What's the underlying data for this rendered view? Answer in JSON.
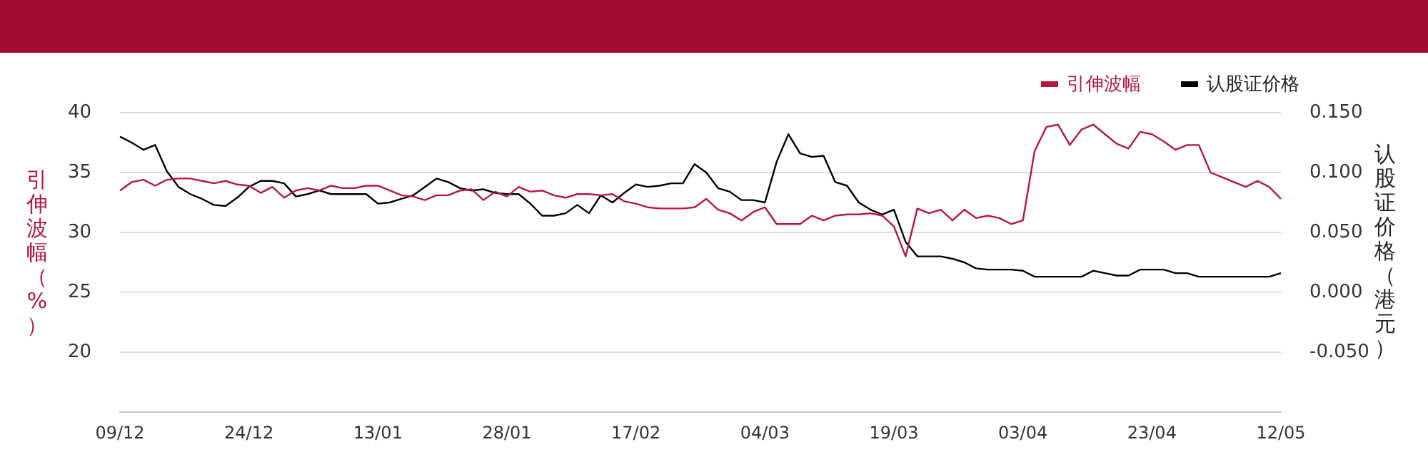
{
  "chart_data": {
    "type": "line",
    "categories": [
      "09/12",
      null,
      null,
      null,
      null,
      null,
      null,
      null,
      null,
      null,
      null,
      "24/12",
      null,
      null,
      null,
      null,
      null,
      null,
      null,
      null,
      null,
      null,
      "13/01",
      null,
      null,
      null,
      null,
      null,
      null,
      null,
      null,
      null,
      null,
      "28/01",
      null,
      null,
      null,
      null,
      null,
      null,
      null,
      null,
      null,
      null,
      "17/02",
      null,
      null,
      null,
      null,
      null,
      null,
      null,
      null,
      null,
      null,
      "04/03",
      null,
      null,
      null,
      null,
      null,
      null,
      null,
      null,
      null,
      null,
      "19/03",
      null,
      null,
      null,
      null,
      null,
      null,
      null,
      null,
      null,
      null,
      "03/04",
      null,
      null,
      null,
      null,
      null,
      null,
      null,
      null,
      null,
      null,
      "23/04",
      null,
      null,
      null,
      null,
      null,
      null,
      null,
      null,
      null,
      null,
      "12/05"
    ],
    "series": [
      {
        "name": "引伸波幅",
        "color": "#b5173f",
        "axis": "y",
        "values": [
          33.5,
          34.2,
          34.4,
          33.9,
          34.4,
          34.5,
          34.5,
          34.3,
          34.1,
          34.3,
          34.0,
          33.9,
          33.3,
          33.8,
          32.9,
          33.5,
          33.7,
          33.5,
          33.9,
          33.7,
          33.7,
          33.9,
          33.9,
          33.5,
          33.1,
          33.0,
          32.7,
          33.1,
          33.1,
          33.5,
          33.6,
          32.7,
          33.4,
          33.0,
          33.8,
          33.4,
          33.5,
          33.1,
          32.9,
          33.2,
          33.2,
          33.1,
          33.2,
          32.6,
          32.4,
          32.1,
          32.0,
          32.0,
          32.0,
          32.1,
          32.8,
          31.9,
          31.6,
          31.0,
          31.7,
          32.1,
          30.7,
          30.7,
          30.7,
          31.4,
          31.0,
          31.4,
          31.5,
          31.5,
          31.6,
          31.4,
          30.5,
          28.0,
          32.0,
          31.6,
          31.9,
          31.0,
          31.9,
          31.2,
          31.4,
          31.2,
          30.7,
          31.0,
          36.8,
          38.8,
          39.0,
          37.3,
          38.6,
          39.0,
          38.2,
          37.4,
          37.0,
          38.4,
          38.2,
          37.6,
          36.9,
          37.3,
          37.3,
          35.0,
          34.6,
          34.2,
          33.8,
          34.3,
          33.8,
          32.8
        ]
      },
      {
        "name": "认股证价格",
        "color": "#000000",
        "axis": "y2",
        "values": [
          0.13,
          0.125,
          0.119,
          0.123,
          0.101,
          0.088,
          0.082,
          0.078,
          0.073,
          0.072,
          0.079,
          0.088,
          0.093,
          0.093,
          0.091,
          0.08,
          0.082,
          0.085,
          0.082,
          0.082,
          0.082,
          0.082,
          0.074,
          0.075,
          0.078,
          0.081,
          0.088,
          0.095,
          0.092,
          0.087,
          0.085,
          0.086,
          0.083,
          0.082,
          0.082,
          0.074,
          0.064,
          0.064,
          0.066,
          0.073,
          0.066,
          0.081,
          0.075,
          0.083,
          0.09,
          0.088,
          0.089,
          0.091,
          0.091,
          0.107,
          0.1,
          0.087,
          0.084,
          0.077,
          0.077,
          0.075,
          0.109,
          0.132,
          0.116,
          0.113,
          0.114,
          0.092,
          0.089,
          0.075,
          0.069,
          0.065,
          0.069,
          0.042,
          0.03,
          0.03,
          0.03,
          0.028,
          0.025,
          0.02,
          0.019,
          0.019,
          0.019,
          0.018,
          0.013,
          0.013,
          0.013,
          0.013,
          0.013,
          0.018,
          0.016,
          0.014,
          0.014,
          0.019,
          0.019,
          0.019,
          0.016,
          0.016,
          0.013,
          0.013,
          0.013,
          0.013,
          0.013,
          0.013,
          0.013,
          0.016
        ]
      }
    ],
    "ylabel": "引伸波幅（%）",
    "y2label": "认股证价格（港元）",
    "ylim": [
      15,
      40
    ],
    "yticks": [
      20,
      25,
      30,
      35,
      40
    ],
    "y2lim": [
      -0.1,
      0.15
    ],
    "y2ticks": [
      {
        "value": -0.05,
        "label": "-0.050"
      },
      {
        "value": 0,
        "label": "0.000"
      },
      {
        "value": 0.05,
        "label": "0.050"
      },
      {
        "value": 0.1,
        "label": "0.100"
      },
      {
        "value": 0.15,
        "label": "0.150"
      }
    ],
    "grid": "y",
    "legend": "top right"
  }
}
